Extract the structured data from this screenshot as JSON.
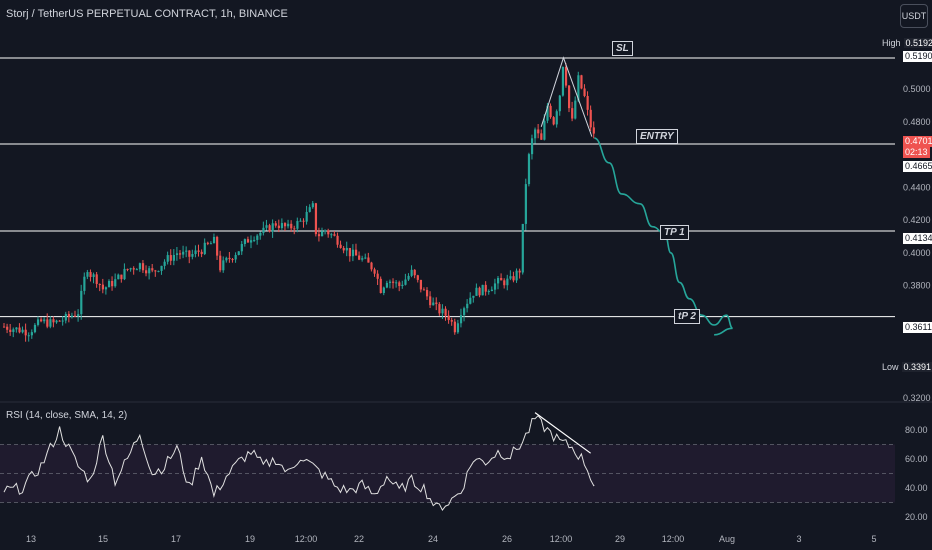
{
  "header": {
    "title": "Storj / TetherUS PERPETUAL CONTRACT, 1h, BINANCE",
    "currency_button": "USDT"
  },
  "rsi": {
    "title": "RSI (14, close, SMA, 14, 2)"
  },
  "annotations": {
    "sl": "SL",
    "entry": "ENTRY",
    "tp1": "TP 1",
    "tp2": "tP 2"
  },
  "price_scale": {
    "high_label": "High",
    "high_value": "0.5192",
    "low_label": "Low",
    "low_value": "0.3391",
    "sl_value": "0.5190",
    "current_value": "0.4701",
    "countdown": "02:13",
    "entry_value": "0.4665",
    "tp1_value": "0.4134",
    "tp2_value": "0.3611"
  },
  "colors": {
    "background": "#131722",
    "up": "#26a69a",
    "down": "#ef5350",
    "line": "#ffffff",
    "projection": "#26a69a",
    "rsi_band": "#1f1b2e"
  },
  "chart_data": {
    "type": "candlestick",
    "price_ticks": [
      "0.5000",
      "0.4800",
      "0.4400",
      "0.4200",
      "0.4000",
      "0.3800",
      "0.3200"
    ],
    "time_ticks": [
      "13",
      "15",
      "17",
      "19",
      "12:00",
      "22",
      "24",
      "26",
      "12:00",
      "29",
      "12:00",
      "Aug",
      "3",
      "5"
    ],
    "rsi_ticks": [
      "80.00",
      "60.00",
      "40.00",
      "20.00"
    ],
    "levels": {
      "sl": 0.519,
      "entry": 0.4665,
      "tp1": 0.4134,
      "tp2": 0.3611
    },
    "high": 0.5192,
    "low": 0.3391,
    "current": 0.4701,
    "close_path": [
      [
        0,
        0.355
      ],
      [
        2,
        0.352
      ],
      [
        3,
        0.358
      ],
      [
        4,
        0.357
      ],
      [
        5,
        0.36
      ],
      [
        6,
        0.364
      ],
      [
        6.7,
        0.392
      ],
      [
        7,
        0.387
      ],
      [
        7.5,
        0.384
      ],
      [
        8,
        0.378
      ],
      [
        9,
        0.383
      ],
      [
        10,
        0.39
      ],
      [
        11,
        0.393
      ],
      [
        12,
        0.388
      ],
      [
        13,
        0.395
      ],
      [
        14,
        0.4
      ],
      [
        15,
        0.398
      ],
      [
        16,
        0.402
      ],
      [
        17,
        0.407
      ],
      [
        17.5,
        0.391
      ],
      [
        18,
        0.395
      ],
      [
        19,
        0.402
      ],
      [
        20,
        0.41
      ],
      [
        21,
        0.413
      ],
      [
        22,
        0.418
      ],
      [
        23,
        0.415
      ],
      [
        24,
        0.419
      ],
      [
        25,
        0.428
      ],
      [
        25.3,
        0.41
      ],
      [
        26,
        0.414
      ],
      [
        27,
        0.408
      ],
      [
        28,
        0.4
      ],
      [
        29,
        0.396
      ],
      [
        30,
        0.39
      ],
      [
        30.5,
        0.378
      ],
      [
        31,
        0.384
      ],
      [
        32,
        0.38
      ],
      [
        33,
        0.388
      ],
      [
        34,
        0.376
      ],
      [
        35,
        0.366
      ],
      [
        36,
        0.361
      ],
      [
        36.5,
        0.354
      ],
      [
        37,
        0.365
      ],
      [
        38,
        0.376
      ],
      [
        39,
        0.378
      ],
      [
        40,
        0.382
      ],
      [
        41,
        0.383
      ],
      [
        41.8,
        0.39
      ],
      [
        42.2,
        0.44
      ],
      [
        42.6,
        0.465
      ],
      [
        43,
        0.475
      ],
      [
        43.5,
        0.468
      ],
      [
        44,
        0.49
      ],
      [
        44.5,
        0.48
      ],
      [
        45,
        0.497
      ],
      [
        45.3,
        0.5192
      ],
      [
        45.7,
        0.49
      ],
      [
        46,
        0.48
      ],
      [
        46.5,
        0.506
      ],
      [
        47,
        0.495
      ],
      [
        47.4,
        0.48
      ],
      [
        47.8,
        0.4701
      ]
    ],
    "projection_path": [
      [
        47.8,
        0.4701
      ],
      [
        49,
        0.455
      ],
      [
        50,
        0.436
      ],
      [
        51.5,
        0.43
      ],
      [
        52.5,
        0.416
      ],
      [
        53.5,
        0.412
      ],
      [
        54,
        0.4
      ],
      [
        54.7,
        0.382
      ],
      [
        55.5,
        0.372
      ],
      [
        56.5,
        0.362
      ],
      [
        57.5,
        0.356
      ],
      [
        58.5,
        0.362
      ],
      [
        59,
        0.354
      ],
      [
        57.5,
        0.35
      ]
    ],
    "rsi_values": [
      [
        0,
        38
      ],
      [
        1.5,
        40
      ],
      [
        3,
        55
      ],
      [
        4.5,
        80
      ],
      [
        6,
        55
      ],
      [
        7,
        45
      ],
      [
        8,
        75
      ],
      [
        9,
        45
      ],
      [
        10,
        60
      ],
      [
        11,
        78
      ],
      [
        12,
        50
      ],
      [
        13,
        55
      ],
      [
        14,
        68
      ],
      [
        15,
        40
      ],
      [
        16,
        62
      ],
      [
        17,
        35
      ],
      [
        18,
        48
      ],
      [
        19,
        58
      ],
      [
        20,
        65
      ],
      [
        21,
        55
      ],
      [
        22,
        60
      ],
      [
        23,
        50
      ],
      [
        24,
        62
      ],
      [
        25,
        55
      ],
      [
        26,
        48
      ],
      [
        27,
        40
      ],
      [
        28,
        38
      ],
      [
        29,
        42
      ],
      [
        30,
        35
      ],
      [
        31,
        48
      ],
      [
        32,
        38
      ],
      [
        33,
        45
      ],
      [
        34,
        40
      ],
      [
        35,
        26
      ],
      [
        36,
        30
      ],
      [
        37,
        38
      ],
      [
        38,
        60
      ],
      [
        39,
        58
      ],
      [
        40,
        65
      ],
      [
        41,
        62
      ],
      [
        42,
        72
      ],
      [
        43,
        88
      ],
      [
        44,
        80
      ],
      [
        45,
        72
      ],
      [
        46,
        68
      ],
      [
        47,
        58
      ],
      [
        47.8,
        42
      ]
    ],
    "rsi_divergence": [
      [
        43,
        92
      ],
      [
        47.5,
        64
      ]
    ],
    "rsi_levels": {
      "upper": 70,
      "middle": 50,
      "lower": 30
    }
  }
}
